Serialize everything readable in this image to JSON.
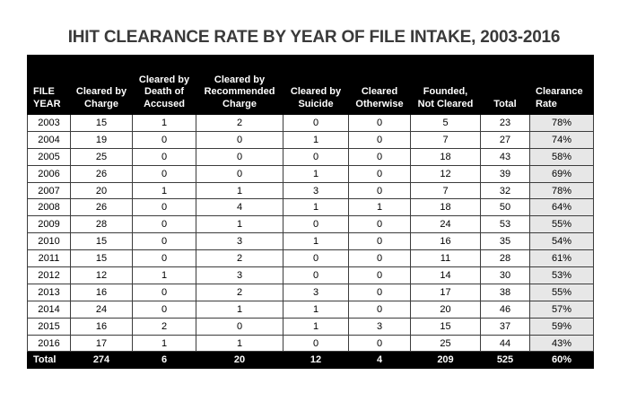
{
  "title": "IHIT CLEARANCE RATE BY YEAR OF FILE INTAKE, 2003-2016",
  "colors": {
    "header_bg": "#000000",
    "header_text": "#ffffff",
    "total_row_bg": "#000000",
    "clearance_column_bg": "#e7e7e7",
    "title_text": "#3a3a3a",
    "grid_border": "#3c3c3c",
    "page_bg": "#ffffff"
  },
  "header_display": [
    "FILE\nYEAR",
    "Cleared by\nCharge",
    "Cleared by\nDeath of\nAccused",
    "Cleared by\nRecommended\nCharge",
    "Cleared by\nSuicide",
    "Cleared\nOtherwise",
    "Founded,\nNot Cleared",
    "Total",
    "Clearance\nRate"
  ],
  "chart_data": {
    "type": "table",
    "title": "IHIT CLEARANCE RATE BY YEAR OF FILE INTAKE, 2003-2016",
    "columns": [
      "FILE YEAR",
      "Cleared by Charge",
      "Cleared by Death of Accused",
      "Cleared by Recommended Charge",
      "Cleared by Suicide",
      "Cleared Otherwise",
      "Founded, Not Cleared",
      "Total",
      "Clearance Rate"
    ],
    "rows": [
      [
        "2003",
        "15",
        "1",
        "2",
        "0",
        "0",
        "5",
        "23",
        "78%"
      ],
      [
        "2004",
        "19",
        "0",
        "0",
        "1",
        "0",
        "7",
        "27",
        "74%"
      ],
      [
        "2005",
        "25",
        "0",
        "0",
        "0",
        "0",
        "18",
        "43",
        "58%"
      ],
      [
        "2006",
        "26",
        "0",
        "0",
        "1",
        "0",
        "12",
        "39",
        "69%"
      ],
      [
        "2007",
        "20",
        "1",
        "1",
        "3",
        "0",
        "7",
        "32",
        "78%"
      ],
      [
        "2008",
        "26",
        "0",
        "4",
        "1",
        "1",
        "18",
        "50",
        "64%"
      ],
      [
        "2009",
        "28",
        "0",
        "1",
        "0",
        "0",
        "24",
        "53",
        "55%"
      ],
      [
        "2010",
        "15",
        "0",
        "3",
        "1",
        "0",
        "16",
        "35",
        "54%"
      ],
      [
        "2011",
        "15",
        "0",
        "2",
        "0",
        "0",
        "11",
        "28",
        "61%"
      ],
      [
        "2012",
        "12",
        "1",
        "3",
        "0",
        "0",
        "14",
        "30",
        "53%"
      ],
      [
        "2013",
        "16",
        "0",
        "2",
        "3",
        "0",
        "17",
        "38",
        "55%"
      ],
      [
        "2014",
        "24",
        "0",
        "1",
        "1",
        "0",
        "20",
        "46",
        "57%"
      ],
      [
        "2015",
        "16",
        "2",
        "0",
        "1",
        "3",
        "15",
        "37",
        "59%"
      ],
      [
        "2016",
        "17",
        "1",
        "1",
        "0",
        "0",
        "25",
        "44",
        "43%"
      ]
    ],
    "total_row": [
      "Total",
      "274",
      "6",
      "20",
      "12",
      "4",
      "209",
      "525",
      "60%"
    ]
  }
}
